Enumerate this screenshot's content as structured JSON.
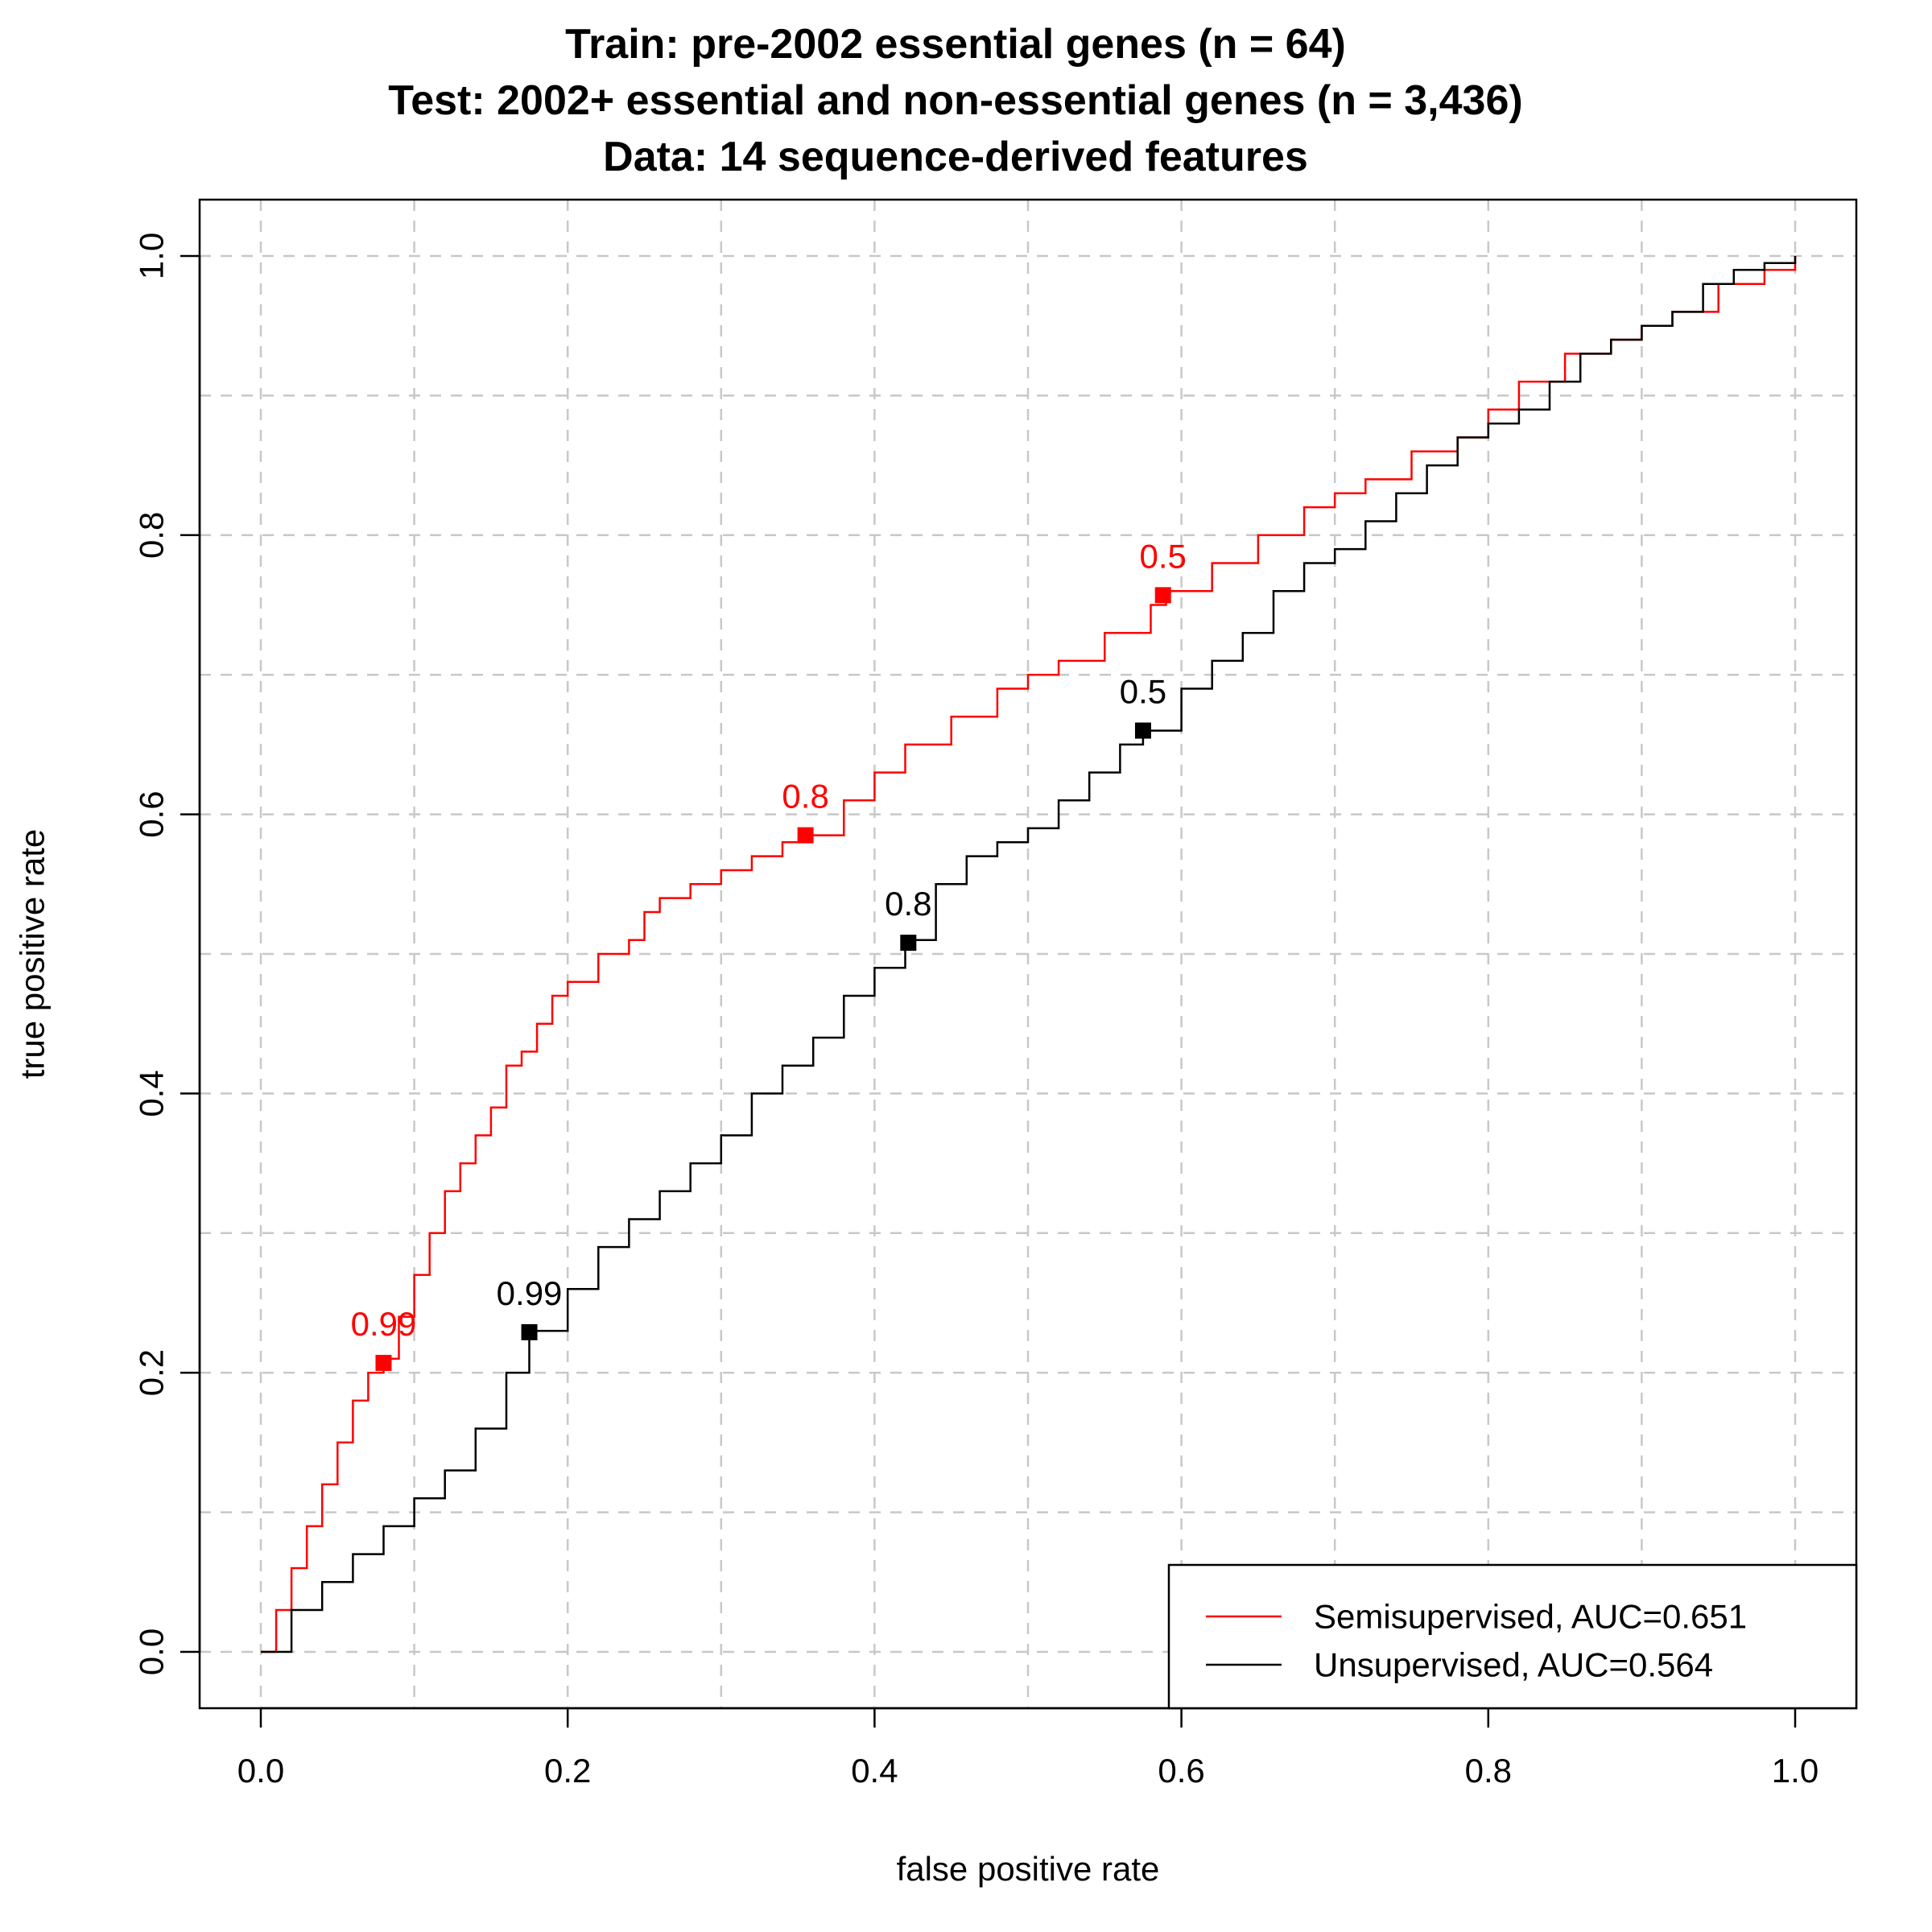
{
  "chart_data": {
    "type": "line",
    "title_lines": [
      "Train: pre-2002 essential genes (n = 64)",
      "Test: 2002+ essential and non-essential genes (n = 3,436)",
      "Data: 14 sequence-derived features"
    ],
    "xlabel": "false positive rate",
    "ylabel": "true positive rate",
    "xlim": [
      0,
      1
    ],
    "ylim": [
      0,
      1
    ],
    "x_ticks": [
      0.0,
      0.2,
      0.4,
      0.6,
      0.8,
      1.0
    ],
    "x_tick_labels": [
      "0.0",
      "0.2",
      "0.4",
      "0.6",
      "0.8",
      "1.0"
    ],
    "y_ticks": [
      0.0,
      0.2,
      0.4,
      0.6,
      0.8,
      1.0
    ],
    "y_tick_labels": [
      "0.0",
      "0.2",
      "0.4",
      "0.6",
      "0.8",
      "1.0"
    ],
    "grid": true,
    "grid_lines": [
      0,
      0.1,
      0.2,
      0.3,
      0.4,
      0.5,
      0.6,
      0.7,
      0.8,
      0.9,
      1.0
    ],
    "legend_position": "bottom-right",
    "series": [
      {
        "name": "Semisupervised, AUC=0.651",
        "color": "#ff0000",
        "x": [
          0.0,
          0.01,
          0.02,
          0.03,
          0.04,
          0.05,
          0.06,
          0.07,
          0.08,
          0.09,
          0.1,
          0.11,
          0.12,
          0.13,
          0.14,
          0.15,
          0.16,
          0.17,
          0.18,
          0.19,
          0.2,
          0.22,
          0.24,
          0.25,
          0.26,
          0.28,
          0.3,
          0.32,
          0.34,
          0.355,
          0.38,
          0.4,
          0.42,
          0.45,
          0.48,
          0.5,
          0.52,
          0.55,
          0.58,
          0.59,
          0.62,
          0.65,
          0.68,
          0.7,
          0.72,
          0.75,
          0.78,
          0.8,
          0.82,
          0.85,
          0.88,
          0.9,
          0.92,
          0.95,
          0.98,
          1.0
        ],
        "y": [
          0.0,
          0.03,
          0.06,
          0.09,
          0.12,
          0.15,
          0.18,
          0.2,
          0.21,
          0.24,
          0.27,
          0.3,
          0.33,
          0.35,
          0.37,
          0.39,
          0.42,
          0.43,
          0.45,
          0.47,
          0.48,
          0.5,
          0.51,
          0.53,
          0.54,
          0.55,
          0.56,
          0.57,
          0.58,
          0.585,
          0.61,
          0.63,
          0.65,
          0.67,
          0.69,
          0.7,
          0.71,
          0.73,
          0.75,
          0.76,
          0.78,
          0.8,
          0.82,
          0.83,
          0.84,
          0.86,
          0.87,
          0.89,
          0.91,
          0.93,
          0.94,
          0.95,
          0.96,
          0.98,
          0.99,
          1.0
        ]
      },
      {
        "name": "Unsupervised, AUC=0.564",
        "color": "#000000",
        "x": [
          0.0,
          0.02,
          0.04,
          0.06,
          0.08,
          0.1,
          0.12,
          0.14,
          0.16,
          0.175,
          0.2,
          0.22,
          0.24,
          0.26,
          0.28,
          0.3,
          0.32,
          0.34,
          0.36,
          0.38,
          0.4,
          0.42,
          0.44,
          0.46,
          0.48,
          0.5,
          0.52,
          0.54,
          0.56,
          0.575,
          0.6,
          0.62,
          0.64,
          0.66,
          0.68,
          0.7,
          0.72,
          0.74,
          0.76,
          0.78,
          0.8,
          0.82,
          0.84,
          0.86,
          0.88,
          0.9,
          0.92,
          0.94,
          0.96,
          0.98,
          1.0
        ],
        "y": [
          0.0,
          0.03,
          0.05,
          0.07,
          0.09,
          0.11,
          0.13,
          0.16,
          0.2,
          0.23,
          0.26,
          0.29,
          0.31,
          0.33,
          0.35,
          0.37,
          0.4,
          0.42,
          0.44,
          0.47,
          0.49,
          0.51,
          0.55,
          0.57,
          0.58,
          0.59,
          0.61,
          0.63,
          0.65,
          0.66,
          0.69,
          0.71,
          0.73,
          0.76,
          0.78,
          0.79,
          0.81,
          0.83,
          0.85,
          0.87,
          0.88,
          0.89,
          0.91,
          0.93,
          0.94,
          0.95,
          0.96,
          0.98,
          0.99,
          0.995,
          1.0
        ]
      }
    ],
    "threshold_points": [
      {
        "series": 0,
        "label": "0.99",
        "x": 0.08,
        "y": 0.207,
        "color": "#ff0000"
      },
      {
        "series": 0,
        "label": "0.8",
        "x": 0.355,
        "y": 0.585,
        "color": "#ff0000"
      },
      {
        "series": 0,
        "label": "0.5",
        "x": 0.588,
        "y": 0.757,
        "color": "#ff0000"
      },
      {
        "series": 1,
        "label": "0.99",
        "x": 0.175,
        "y": 0.229,
        "color": "#000000"
      },
      {
        "series": 1,
        "label": "0.8",
        "x": 0.422,
        "y": 0.508,
        "color": "#000000"
      },
      {
        "series": 1,
        "label": "0.5",
        "x": 0.575,
        "y": 0.66,
        "color": "#000000"
      }
    ]
  }
}
